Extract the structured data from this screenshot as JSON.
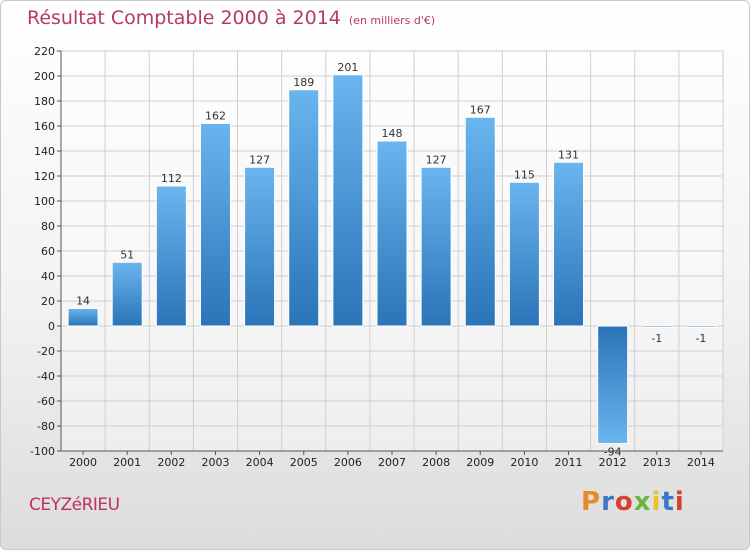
{
  "header": {
    "title": "Résultat Comptable 2000 à 2014",
    "unit": "(en milliers d'€)"
  },
  "footer": {
    "commune": "CEYZéRIEU",
    "logo_text": "Proxiti",
    "logo_colors": [
      "#e8892a",
      "#3b78c4",
      "#d8402e",
      "#69b83a",
      "#e8c42a",
      "#3b78c4",
      "#d8402e"
    ]
  },
  "colors": {
    "bar": "#3f93d8",
    "bar_light": "#6ab5ee",
    "bar_dark": "#2a74b8",
    "grid": "#cfcfcf"
  },
  "chart_data": {
    "type": "bar",
    "categories": [
      "2000",
      "2001",
      "2002",
      "2003",
      "2004",
      "2005",
      "2006",
      "2007",
      "2008",
      "2009",
      "2010",
      "2011",
      "2012",
      "2013",
      "2014"
    ],
    "values": [
      14,
      51,
      112,
      162,
      127,
      189,
      201,
      148,
      127,
      167,
      115,
      131,
      -94,
      -1,
      -1
    ],
    "ylim": [
      -100,
      220
    ],
    "yticks": [
      -100,
      -80,
      -60,
      -40,
      -20,
      0,
      20,
      40,
      60,
      80,
      100,
      120,
      140,
      160,
      180,
      200,
      220
    ],
    "grid": true,
    "title": "Résultat Comptable 2000 à 2014",
    "ylabel": "",
    "xlabel": ""
  }
}
